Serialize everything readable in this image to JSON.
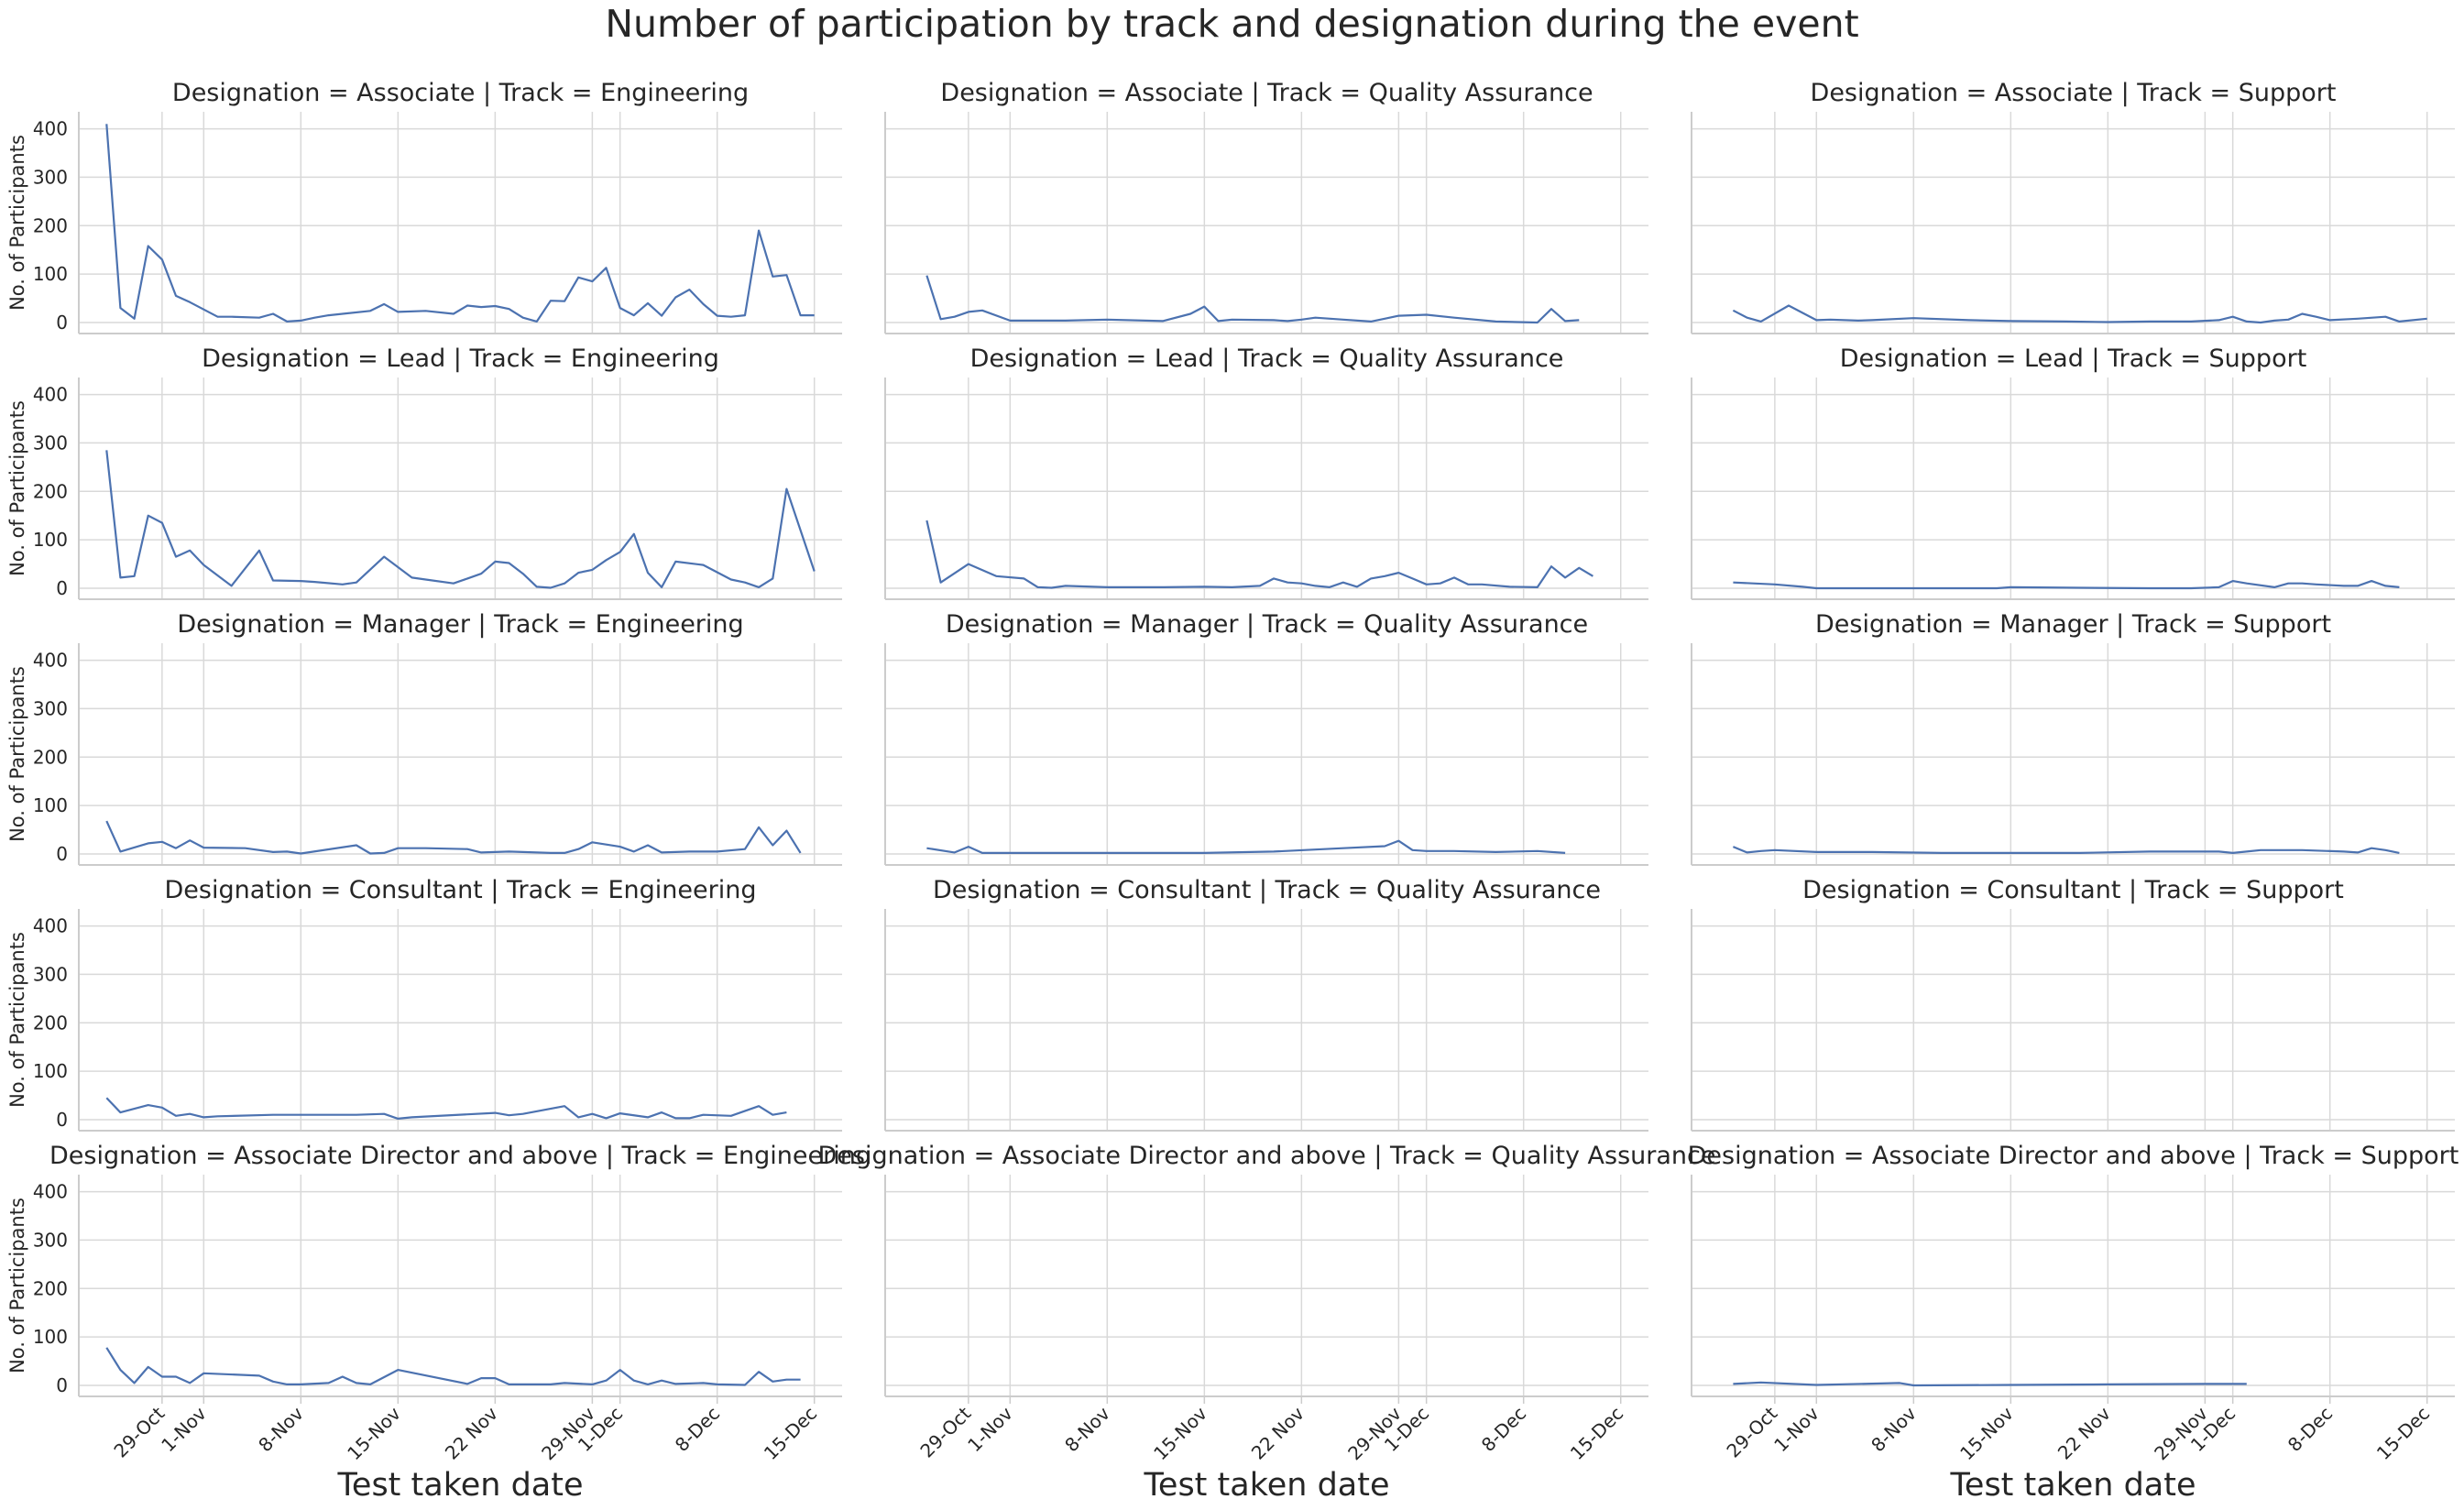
{
  "title": "Number of participation by track and designation during the event",
  "xlabel": "Test taken date",
  "ylabel": "No. of Participants",
  "colors": {
    "line": "#4c72b0",
    "grid": "#d9d9d9",
    "axis": "#cccccc",
    "text": "#262626"
  },
  "chart_data": {
    "type": "line",
    "title": "Number of participation by track and designation during the event",
    "xlabel": "Test taken date",
    "ylabel": "No. of Participants",
    "ylim": [
      0,
      420
    ],
    "yticks": [
      0,
      100,
      200,
      300,
      400
    ],
    "xticks": [
      "29-Oct",
      "1-Nov",
      "8-Nov",
      "15-Nov",
      "22 Nov",
      "29-Nov",
      "1-Dec",
      "8-Dec",
      "15-Dec"
    ],
    "xtick_dates": [
      "2020-10-29",
      "2020-11-01",
      "2020-11-08",
      "2020-11-15",
      "2020-11-22",
      "2020-11-29",
      "2020-12-01",
      "2020-12-08",
      "2020-12-15"
    ],
    "xlim": [
      "2020-10-23",
      "2020-12-17"
    ],
    "grid": true,
    "legend": "none",
    "rows": [
      "Associate",
      "Lead",
      "Manager",
      "Consultant",
      "Associate Director and above"
    ],
    "cols": [
      "Engineering",
      "Quality Assurance",
      "Support"
    ],
    "panels": [
      {
        "title": "Designation = Associate | Track = Engineering",
        "x": [
          "2020-10-25",
          "2020-10-26",
          "2020-10-27",
          "2020-10-28",
          "2020-10-29",
          "2020-10-30",
          "2020-10-31",
          "2020-11-02",
          "2020-11-03",
          "2020-11-05",
          "2020-11-06",
          "2020-11-07",
          "2020-11-08",
          "2020-11-09",
          "2020-11-10",
          "2020-11-13",
          "2020-11-14",
          "2020-11-15",
          "2020-11-17",
          "2020-11-19",
          "2020-11-20",
          "2020-11-21",
          "2020-11-22",
          "2020-11-23",
          "2020-11-24",
          "2020-11-25",
          "2020-11-26",
          "2020-11-27",
          "2020-11-28",
          "2020-11-29",
          "2020-11-30",
          "2020-12-01",
          "2020-12-02",
          "2020-12-03",
          "2020-12-04",
          "2020-12-05",
          "2020-12-06",
          "2020-12-07",
          "2020-12-08",
          "2020-12-09",
          "2020-12-10",
          "2020-12-11",
          "2020-12-12",
          "2020-12-13",
          "2020-12-14",
          "2020-12-15"
        ],
        "y": [
          410,
          30,
          8,
          158,
          130,
          55,
          42,
          12,
          12,
          10,
          18,
          2,
          4,
          10,
          15,
          24,
          38,
          22,
          24,
          18,
          35,
          32,
          34,
          28,
          10,
          2,
          45,
          44,
          93,
          85,
          113,
          30,
          15,
          40,
          14,
          52,
          68,
          38,
          14,
          12,
          15,
          190,
          95,
          98,
          15,
          15
        ]
      },
      {
        "title": "Designation = Associate | Track = Quality Assurance",
        "x": [
          "2020-10-26",
          "2020-10-27",
          "2020-10-28",
          "2020-10-29",
          "2020-10-30",
          "2020-11-01",
          "2020-11-05",
          "2020-11-08",
          "2020-11-12",
          "2020-11-14",
          "2020-11-15",
          "2020-11-16",
          "2020-11-17",
          "2020-11-20",
          "2020-11-21",
          "2020-11-22",
          "2020-11-23",
          "2020-11-25",
          "2020-11-27",
          "2020-11-28",
          "2020-11-29",
          "2020-12-01",
          "2020-12-03",
          "2020-12-06",
          "2020-12-09",
          "2020-12-10",
          "2020-12-11",
          "2020-12-12"
        ],
        "y": [
          97,
          7,
          12,
          22,
          25,
          4,
          4,
          6,
          3,
          18,
          33,
          3,
          6,
          5,
          3,
          6,
          10,
          6,
          2,
          8,
          14,
          16,
          10,
          2,
          0,
          28,
          3,
          5
        ]
      },
      {
        "title": "Designation = Associate | Track = Support",
        "x": [
          "2020-10-26",
          "2020-10-27",
          "2020-10-28",
          "2020-10-30",
          "2020-11-01",
          "2020-11-02",
          "2020-11-04",
          "2020-11-05",
          "2020-11-08",
          "2020-11-12",
          "2020-11-15",
          "2020-11-19",
          "2020-11-22",
          "2020-11-25",
          "2020-11-28",
          "2020-11-30",
          "2020-12-01",
          "2020-12-02",
          "2020-12-03",
          "2020-12-04",
          "2020-12-05",
          "2020-12-06",
          "2020-12-07",
          "2020-12-08",
          "2020-12-10",
          "2020-12-12",
          "2020-12-13",
          "2020-12-15"
        ],
        "y": [
          25,
          10,
          2,
          35,
          5,
          6,
          4,
          5,
          9,
          5,
          3,
          2,
          1,
          2,
          2,
          5,
          12,
          2,
          0,
          4,
          6,
          18,
          12,
          5,
          8,
          12,
          2,
          8
        ]
      },
      {
        "title": "Designation = Lead | Track = Engineering",
        "x": [
          "2020-10-25",
          "2020-10-26",
          "2020-10-27",
          "2020-10-28",
          "2020-10-29",
          "2020-10-30",
          "2020-10-31",
          "2020-11-01",
          "2020-11-03",
          "2020-11-05",
          "2020-11-06",
          "2020-11-08",
          "2020-11-09",
          "2020-11-11",
          "2020-11-12",
          "2020-11-14",
          "2020-11-16",
          "2020-11-17",
          "2020-11-19",
          "2020-11-20",
          "2020-11-21",
          "2020-11-22",
          "2020-11-23",
          "2020-11-24",
          "2020-11-25",
          "2020-11-26",
          "2020-11-27",
          "2020-11-28",
          "2020-11-29",
          "2020-11-30",
          "2020-12-01",
          "2020-12-02",
          "2020-12-03",
          "2020-12-04",
          "2020-12-05",
          "2020-12-07",
          "2020-12-09",
          "2020-12-10",
          "2020-12-11",
          "2020-12-12",
          "2020-12-13",
          "2020-12-15"
        ],
        "y": [
          285,
          22,
          25,
          150,
          135,
          65,
          78,
          48,
          5,
          78,
          16,
          15,
          13,
          8,
          12,
          65,
          22,
          18,
          10,
          20,
          30,
          55,
          52,
          30,
          3,
          1,
          10,
          32,
          38,
          58,
          75,
          112,
          32,
          2,
          55,
          48,
          18,
          12,
          2,
          20,
          205,
          35
        ]
      },
      {
        "title": "Designation = Lead | Track = Quality Assurance",
        "x": [
          "2020-10-26",
          "2020-10-27",
          "2020-10-29",
          "2020-10-31",
          "2020-11-02",
          "2020-11-03",
          "2020-11-04",
          "2020-11-05",
          "2020-11-08",
          "2020-11-12",
          "2020-11-15",
          "2020-11-17",
          "2020-11-19",
          "2020-11-20",
          "2020-11-21",
          "2020-11-22",
          "2020-11-23",
          "2020-11-24",
          "2020-11-25",
          "2020-11-26",
          "2020-11-27",
          "2020-11-28",
          "2020-11-29",
          "2020-11-30",
          "2020-12-01",
          "2020-12-02",
          "2020-12-03",
          "2020-12-04",
          "2020-12-05",
          "2020-12-07",
          "2020-12-09",
          "2020-12-10",
          "2020-12-11",
          "2020-12-12",
          "2020-12-13"
        ],
        "y": [
          140,
          12,
          50,
          25,
          20,
          2,
          1,
          5,
          2,
          2,
          3,
          2,
          5,
          20,
          12,
          10,
          5,
          2,
          12,
          3,
          20,
          25,
          32,
          20,
          8,
          10,
          22,
          8,
          8,
          3,
          2,
          45,
          22,
          42,
          25
        ]
      },
      {
        "title": "Designation = Lead | Track = Support",
        "x": [
          "2020-10-26",
          "2020-10-29",
          "2020-10-31",
          "2020-11-01",
          "2020-11-05",
          "2020-11-10",
          "2020-11-14",
          "2020-11-15",
          "2020-11-20",
          "2020-11-25",
          "2020-11-28",
          "2020-11-30",
          "2020-12-01",
          "2020-12-02",
          "2020-12-04",
          "2020-12-05",
          "2020-12-06",
          "2020-12-07",
          "2020-12-09",
          "2020-12-10",
          "2020-12-11",
          "2020-12-12",
          "2020-12-13"
        ],
        "y": [
          12,
          8,
          3,
          0,
          0,
          0,
          0,
          2,
          1,
          0,
          0,
          2,
          15,
          10,
          2,
          10,
          10,
          8,
          5,
          5,
          15,
          5,
          2
        ]
      },
      {
        "title": "Designation = Manager | Track = Engineering",
        "x": [
          "2020-10-25",
          "2020-10-26",
          "2020-10-28",
          "2020-10-29",
          "2020-10-30",
          "2020-10-31",
          "2020-11-01",
          "2020-11-04",
          "2020-11-06",
          "2020-11-07",
          "2020-11-08",
          "2020-11-12",
          "2020-11-13",
          "2020-11-14",
          "2020-11-15",
          "2020-11-17",
          "2020-11-20",
          "2020-11-21",
          "2020-11-23",
          "2020-11-26",
          "2020-11-27",
          "2020-11-28",
          "2020-11-29",
          "2020-12-01",
          "2020-12-02",
          "2020-12-03",
          "2020-12-04",
          "2020-12-06",
          "2020-12-08",
          "2020-12-10",
          "2020-12-11",
          "2020-12-12",
          "2020-12-13",
          "2020-12-14"
        ],
        "y": [
          68,
          5,
          22,
          25,
          12,
          28,
          13,
          12,
          4,
          5,
          1,
          18,
          1,
          2,
          12,
          12,
          10,
          3,
          5,
          2,
          2,
          10,
          24,
          15,
          5,
          18,
          3,
          5,
          5,
          10,
          55,
          18,
          48,
          2
        ]
      },
      {
        "title": "Designation = Manager | Track = Quality Assurance",
        "x": [
          "2020-10-26",
          "2020-10-28",
          "2020-10-29",
          "2020-10-30",
          "2020-11-05",
          "2020-11-10",
          "2020-11-15",
          "2020-11-20",
          "2020-11-25",
          "2020-11-28",
          "2020-11-29",
          "2020-11-30",
          "2020-12-01",
          "2020-12-03",
          "2020-12-06",
          "2020-12-09",
          "2020-12-11"
        ],
        "y": [
          12,
          3,
          15,
          2,
          2,
          2,
          2,
          5,
          12,
          16,
          27,
          8,
          6,
          6,
          4,
          6,
          2
        ]
      },
      {
        "title": "Designation = Manager | Track = Support",
        "x": [
          "2020-10-26",
          "2020-10-27",
          "2020-10-28",
          "2020-10-29",
          "2020-11-01",
          "2020-11-05",
          "2020-11-10",
          "2020-11-15",
          "2020-11-20",
          "2020-11-25",
          "2020-11-30",
          "2020-12-01",
          "2020-12-02",
          "2020-12-03",
          "2020-12-06",
          "2020-12-09",
          "2020-12-10",
          "2020-12-11",
          "2020-12-12",
          "2020-12-13"
        ],
        "y": [
          15,
          3,
          6,
          8,
          4,
          4,
          2,
          2,
          2,
          5,
          5,
          2,
          5,
          8,
          8,
          5,
          3,
          12,
          8,
          2
        ]
      },
      {
        "title": "Designation = Consultant | Track = Engineering",
        "x": [
          "2020-10-25",
          "2020-10-26",
          "2020-10-28",
          "2020-10-29",
          "2020-10-30",
          "2020-10-31",
          "2020-11-01",
          "2020-11-02",
          "2020-11-06",
          "2020-11-12",
          "2020-11-14",
          "2020-11-15",
          "2020-11-16",
          "2020-11-20",
          "2020-11-22",
          "2020-11-23",
          "2020-11-24",
          "2020-11-27",
          "2020-11-28",
          "2020-11-29",
          "2020-11-30",
          "2020-12-01",
          "2020-12-03",
          "2020-12-04",
          "2020-12-05",
          "2020-12-06",
          "2020-12-07",
          "2020-12-09",
          "2020-12-11",
          "2020-12-12",
          "2020-12-13"
        ],
        "y": [
          45,
          15,
          30,
          25,
          8,
          12,
          5,
          7,
          10,
          10,
          12,
          2,
          5,
          11,
          14,
          9,
          12,
          28,
          5,
          12,
          3,
          13,
          5,
          15,
          3,
          3,
          10,
          8,
          28,
          10,
          15
        ]
      },
      {
        "title": "Designation = Consultant | Track = Quality Assurance",
        "x": [],
        "y": []
      },
      {
        "title": "Designation = Consultant | Track = Support",
        "x": [],
        "y": []
      },
      {
        "title": "Designation = Associate Director and above | Track = Engineering",
        "x": [
          "2020-10-25",
          "2020-10-26",
          "2020-10-27",
          "2020-10-28",
          "2020-10-29",
          "2020-10-30",
          "2020-10-31",
          "2020-11-01",
          "2020-11-05",
          "2020-11-06",
          "2020-11-07",
          "2020-11-08",
          "2020-11-10",
          "2020-11-11",
          "2020-11-12",
          "2020-11-13",
          "2020-11-15",
          "2020-11-20",
          "2020-11-21",
          "2020-11-22",
          "2020-11-23",
          "2020-11-25",
          "2020-11-26",
          "2020-11-27",
          "2020-11-29",
          "2020-11-30",
          "2020-12-01",
          "2020-12-02",
          "2020-12-03",
          "2020-12-04",
          "2020-12-05",
          "2020-12-07",
          "2020-12-08",
          "2020-12-10",
          "2020-12-11",
          "2020-12-12",
          "2020-12-13",
          "2020-12-14"
        ],
        "y": [
          78,
          32,
          5,
          38,
          18,
          18,
          5,
          25,
          20,
          8,
          2,
          2,
          5,
          18,
          5,
          2,
          32,
          3,
          15,
          15,
          2,
          2,
          2,
          5,
          2,
          10,
          32,
          10,
          2,
          10,
          3,
          5,
          2,
          1,
          28,
          8,
          12,
          12
        ]
      },
      {
        "title": "Designation = Associate Director and above | Track = Quality Assurance",
        "x": [],
        "y": []
      },
      {
        "title": "Designation = Associate Director and above | Track = Support",
        "x": [
          "2020-10-26",
          "2020-10-28",
          "2020-11-01",
          "2020-11-07",
          "2020-11-08",
          "2020-11-15",
          "2020-11-22",
          "2020-11-29",
          "2020-12-02"
        ],
        "y": [
          3,
          6,
          1,
          5,
          0,
          1,
          2,
          3,
          3
        ]
      }
    ]
  }
}
